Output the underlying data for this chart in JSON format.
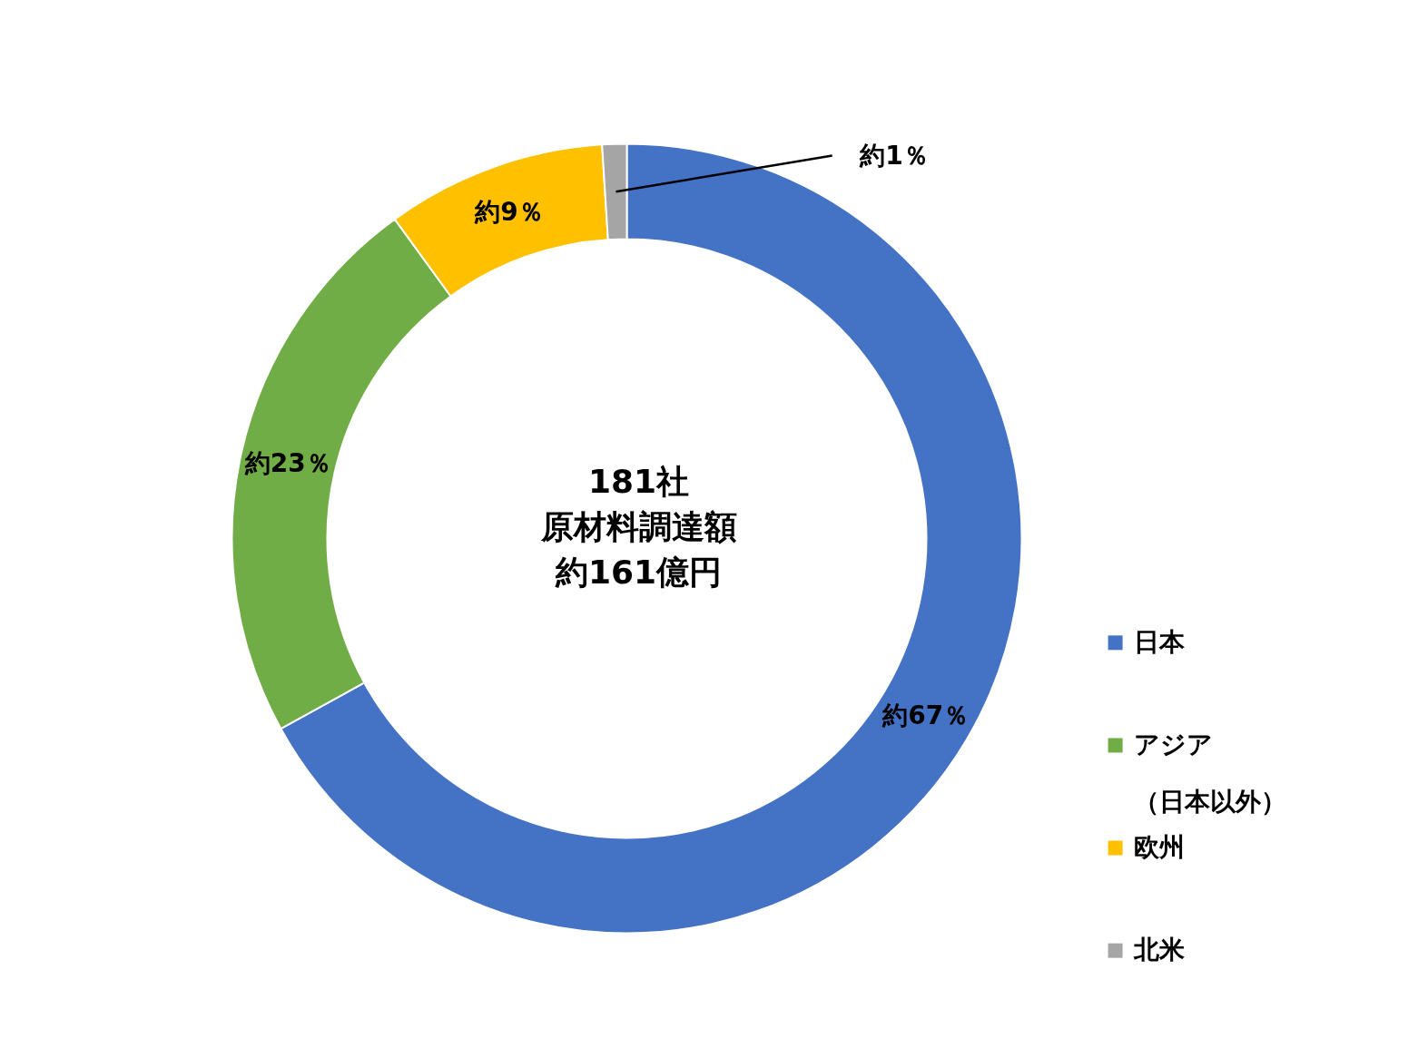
{
  "chart_data": {
    "type": "donut",
    "categories": [
      "日本",
      "アジア（日本以外）",
      "欧州",
      "北米"
    ],
    "values": [
      67,
      23,
      9,
      1
    ],
    "colors": [
      "#4472c4",
      "#70ad47",
      "#ffc000",
      "#a5a5a5"
    ],
    "value_labels": [
      "約67％",
      "約23％",
      "約9％",
      "約1％"
    ],
    "annotations": [
      "181社",
      "原材料調達額",
      "約161億円"
    ],
    "legend": "right"
  }
}
